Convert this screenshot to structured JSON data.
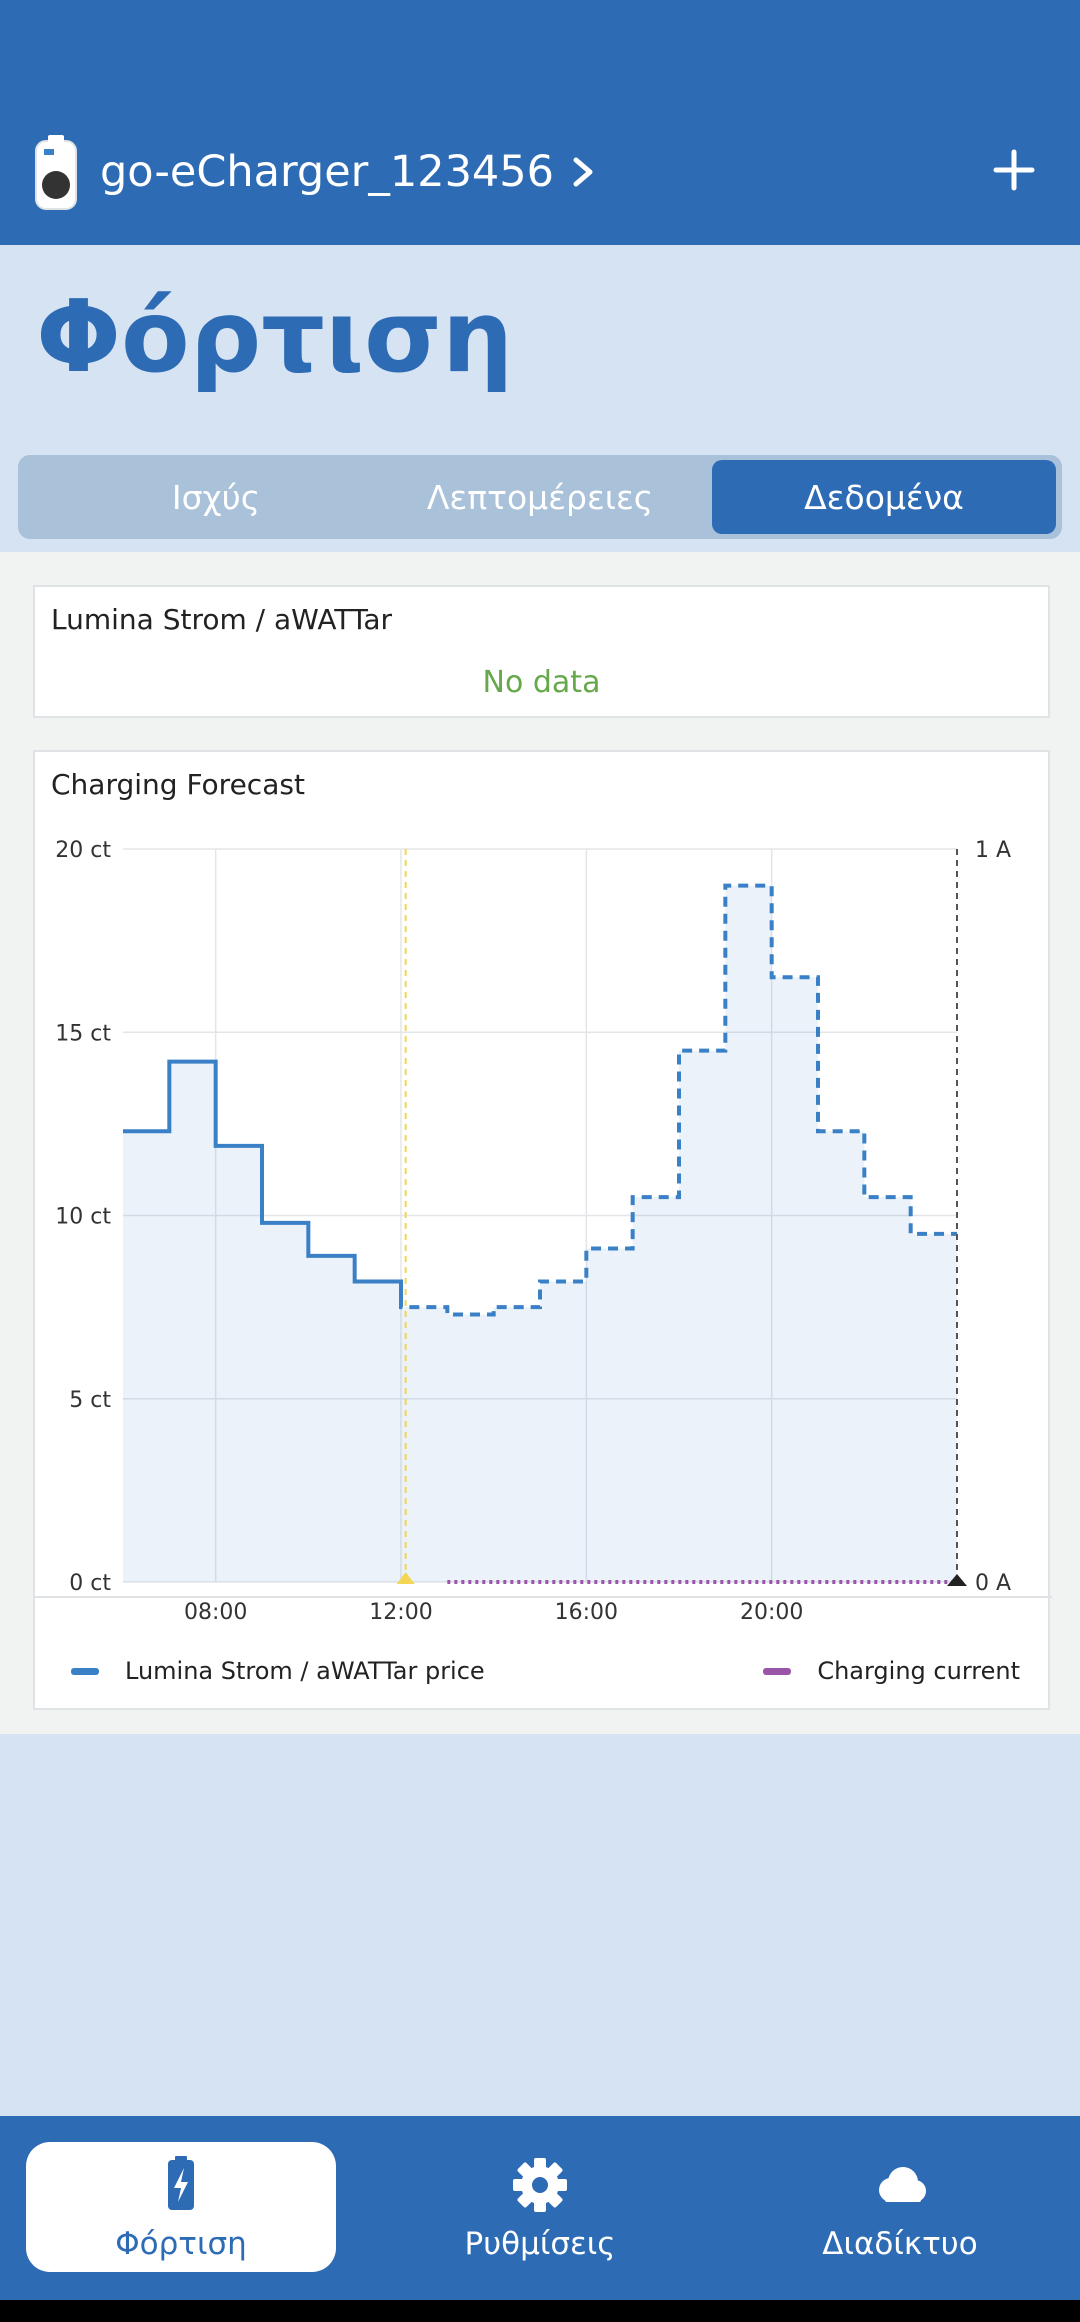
{
  "header": {
    "device_name": "go-eCharger_123456",
    "add_icon": "plus-icon",
    "chevron_icon": "chevron-right-icon"
  },
  "page": {
    "title": "Φόρτιση"
  },
  "tabs": [
    {
      "label": "Ισχύς",
      "active": false
    },
    {
      "label": "Λεπτομέρειες",
      "active": false
    },
    {
      "label": "Δεδομένα",
      "active": true
    }
  ],
  "price_card": {
    "title": "Lumina Strom / aWATTar",
    "status": "No data"
  },
  "forecast_card": {
    "title": "Charging Forecast"
  },
  "chart_data": {
    "type": "line",
    "title": "Charging Forecast",
    "y_left_ticks": [
      "20 ct",
      "15 ct",
      "10 ct",
      "5 ct",
      "0 ct"
    ],
    "y_right_ticks": [
      "1 A",
      "0 A"
    ],
    "x_ticks": [
      "08:00",
      "12:00",
      "16:00",
      "20:00"
    ],
    "ylim": [
      0,
      20
    ],
    "xlim": [
      6,
      24
    ],
    "now_hour": 12.1,
    "series": [
      {
        "name": "Lumina Strom / aWATTar price",
        "color": "#3a80c6",
        "x": [
          6,
          7,
          8,
          9,
          10,
          11,
          12,
          13,
          14,
          15,
          16,
          17,
          18,
          19,
          20,
          21,
          22,
          23,
          24
        ],
        "values": [
          12.3,
          14.2,
          11.9,
          9.8,
          8.9,
          8.2,
          7.5,
          7.3,
          7.5,
          8.2,
          9.1,
          10.5,
          14.5,
          19.0,
          16.5,
          12.3,
          10.5,
          9.5,
          9.5
        ],
        "dashed_from_hour": 12
      },
      {
        "name": "Charging current",
        "color": "#9b55a8",
        "x_start": 13,
        "x_end": 24,
        "value": 0
      }
    ],
    "grid": true,
    "legend_position": "bottom"
  },
  "bottom_nav": [
    {
      "label": "Φόρτιση",
      "icon": "battery-charging-icon",
      "active": true
    },
    {
      "label": "Ρυθμίσεις",
      "icon": "gear-icon",
      "active": false
    },
    {
      "label": "Διαδίκτυο",
      "icon": "cloud-icon",
      "active": false
    }
  ],
  "colors": {
    "brand": "#2e6bb5",
    "background": "#d6e3f3",
    "nodata_green": "#66a84a"
  }
}
